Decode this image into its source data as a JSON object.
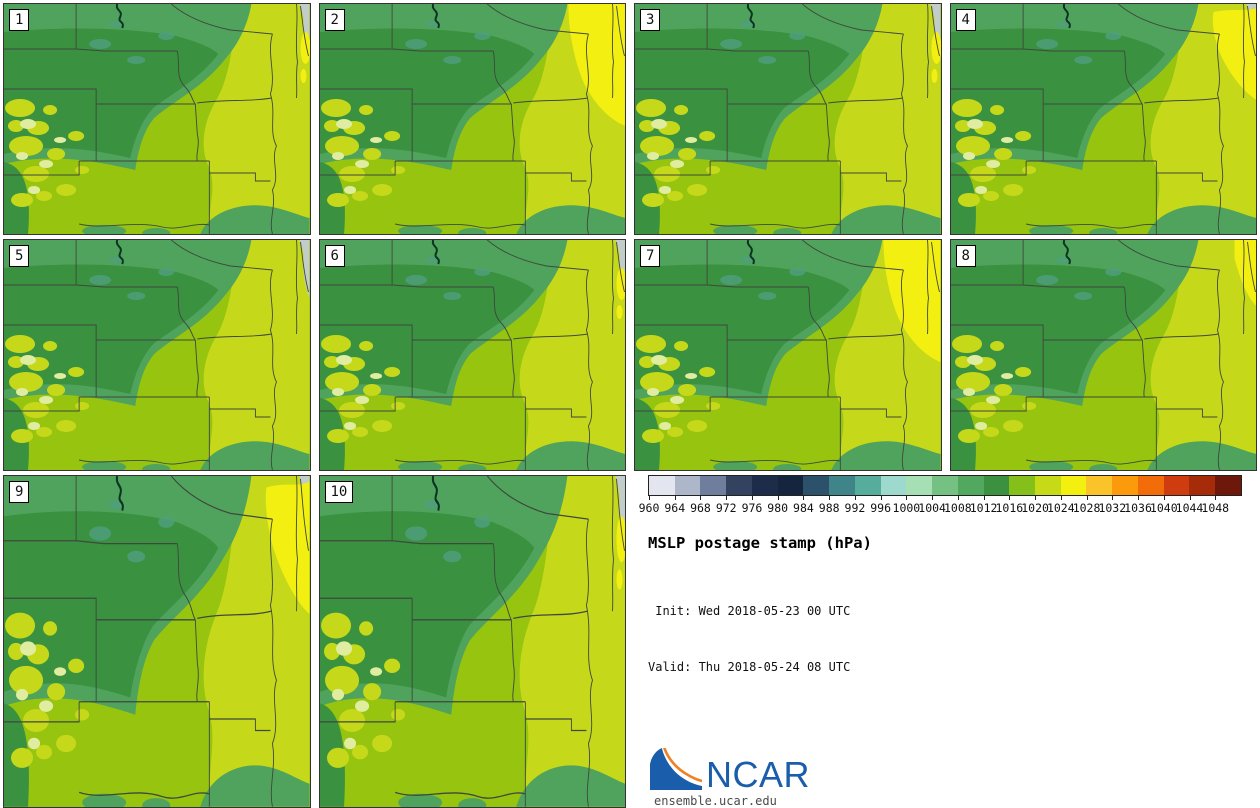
{
  "title": "MSLP postage stamp (hPa)",
  "init_label": " Init: Wed 2018-05-23 00 UTC",
  "valid_label": "Valid: Thu 2018-05-24 08 UTC",
  "panels": [
    {
      "label": "1",
      "yellow_patch": "tiny"
    },
    {
      "label": "2",
      "yellow_patch": "large"
    },
    {
      "label": "3",
      "yellow_patch": "tiny"
    },
    {
      "label": "4",
      "yellow_patch": "medium"
    },
    {
      "label": "5",
      "yellow_patch": "none"
    },
    {
      "label": "6",
      "yellow_patch": "tiny"
    },
    {
      "label": "7",
      "yellow_patch": "large"
    },
    {
      "label": "8",
      "yellow_patch": "small"
    },
    {
      "label": "9",
      "yellow_patch": "medium"
    },
    {
      "label": "10",
      "yellow_patch": "tiny"
    }
  ],
  "legend": {
    "units": "hPa",
    "tick_labels": [
      "960",
      "964",
      "968",
      "972",
      "976",
      "980",
      "984",
      "988",
      "992",
      "996",
      "1000",
      "1004",
      "1008",
      "1012",
      "1016",
      "1020",
      "1024",
      "1028",
      "1032",
      "1036",
      "1040",
      "1044",
      "1048"
    ],
    "segment_colors": [
      "#e3e6ef",
      "#aeb6ca",
      "#707e9d",
      "#33425f",
      "#1d2c49",
      "#15253e",
      "#2b516b",
      "#3f8489",
      "#57ad9c",
      "#9ed9cd",
      "#a5dfb3",
      "#74c183",
      "#52a85f",
      "#3b9140",
      "#84c019",
      "#c7da17",
      "#f3f00f",
      "#fbc32a",
      "#fb9a0b",
      "#f26d0a",
      "#cf3c0f",
      "#a52b09",
      "#6e170b"
    ]
  },
  "branding": {
    "name": "NCAR",
    "url": "ensemble.ucar.edu",
    "blue": "#1a5dab",
    "orange": "#f08122"
  },
  "map_palette": {
    "olive": "#97c40f",
    "bright": "#c5d91a",
    "medium": "#50a35c",
    "dark": "#3a9140",
    "yellow": "#f3ef10",
    "pale": "#e0eda0",
    "teal": "#4f9f7c",
    "lake": "#c2cccb",
    "border": "#3e483e",
    "river": "#0d3322"
  }
}
